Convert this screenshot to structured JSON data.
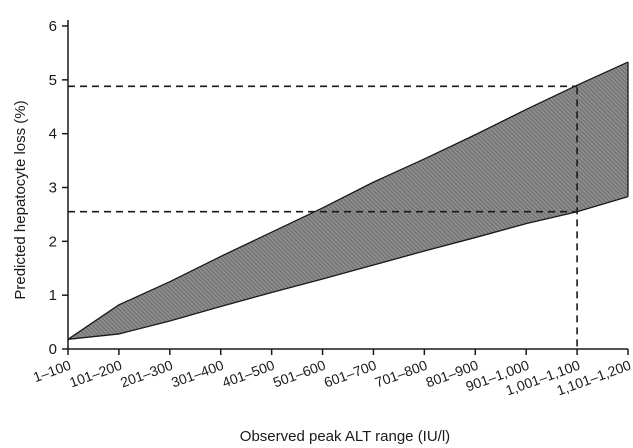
{
  "chart_data": {
    "type": "area",
    "xlabel": "Observed peak ALT range (IU/l)",
    "ylabel": "Predicted hepatocyte loss (%)",
    "categories": [
      "1–100",
      "101–200",
      "201–300",
      "301–400",
      "401–500",
      "501–600",
      "601–700",
      "701–800",
      "801–900",
      "901–1,000",
      "1,001–1,100",
      "1,101–1,200"
    ],
    "ylim": [
      0,
      6
    ],
    "yticks": [
      "0",
      "1",
      "2",
      "3",
      "4",
      "5",
      "6"
    ],
    "series": [
      {
        "values": [
          0.18,
          0.82,
          1.25,
          1.72,
          2.17,
          2.62,
          3.1,
          3.53,
          3.98,
          4.45,
          4.9,
          5.33
        ]
      },
      {
        "values": [
          0.18,
          0.28,
          0.52,
          0.79,
          1.05,
          1.3,
          1.56,
          1.82,
          2.07,
          2.33,
          2.55,
          2.83
        ]
      }
    ],
    "reference_lines": [
      {
        "axis": "y",
        "value": 4.88
      },
      {
        "axis": "y",
        "value": 2.55
      },
      {
        "axis": "x",
        "category": "1,001–1,100"
      }
    ],
    "fill_color": "#8c8c8c",
    "hatch_color": "#5a5a5a",
    "line_color": "#1a1a1a",
    "grid": false
  }
}
